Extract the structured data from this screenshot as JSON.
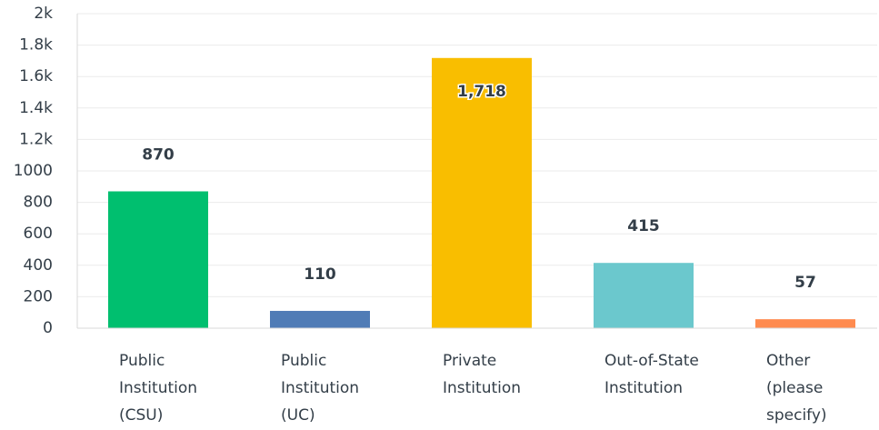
{
  "chart_data": {
    "type": "bar",
    "categories": [
      "Public Institution (CSU)",
      "Public Institution (UC)",
      "Private Institution",
      "Out-of-State Institution",
      "Other (please specify)"
    ],
    "values": [
      870,
      110,
      1718,
      415,
      57
    ],
    "value_labels": [
      "870",
      "110",
      "1,718",
      "415",
      "57"
    ],
    "colors": [
      "#00bf6f",
      "#507cb6",
      "#f9be00",
      "#6bc8cd",
      "#ff8b4f"
    ],
    "ylim": [
      0,
      2000
    ],
    "yticks": [
      0,
      200,
      400,
      600,
      800,
      1000,
      {
        "value": 1200,
        "label": "1.2k"
      },
      {
        "value": 1400,
        "label": "1.4k"
      },
      {
        "value": 1600,
        "label": "1.6k"
      },
      {
        "value": 1800,
        "label": "1.8k"
      },
      {
        "value": 2000,
        "label": "2k"
      }
    ],
    "grid": true
  }
}
